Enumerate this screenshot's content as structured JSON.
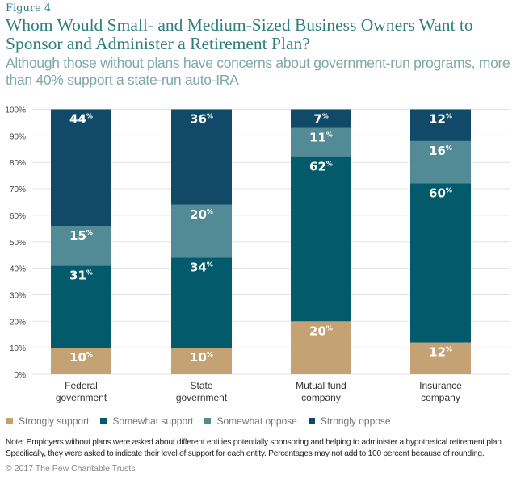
{
  "figure_label": "Figure 4",
  "title": "Whom Would Small- and Medium-Sized Business Owners Want to Sponsor and Administer a Retirement Plan?",
  "subtitle": "Although those without plans have concerns about government-run programs, more than 40% support a state-run auto-IRA",
  "note": "Note: Employers without plans were asked about different entities potentially sponsoring and helping to administer a hypothetical retirement plan. Specifically, they were asked to indicate their level of support for each entity. Percentages may not add to 100 percent because of rounding.",
  "copyright": "© 2017 The Pew Charitable Trusts",
  "chart_data": {
    "type": "bar",
    "stacked": true,
    "categories": [
      "Federal\ngovernment",
      "State\ngovernment",
      "Mutual fund\ncompany",
      "Insurance\ncompany"
    ],
    "series": [
      {
        "name": "Strongly support",
        "color": "#c4a274",
        "values": [
          10,
          10,
          20,
          12
        ]
      },
      {
        "name": "Somewhat support",
        "color": "#035a6a",
        "values": [
          31,
          34,
          62,
          60
        ]
      },
      {
        "name": "Somewhat oppose",
        "color": "#528a96",
        "values": [
          15,
          20,
          11,
          16
        ]
      },
      {
        "name": "Strongly oppose",
        "color": "#104a68",
        "values": [
          44,
          36,
          7,
          12
        ]
      }
    ],
    "ylim": [
      0,
      100
    ],
    "yticks": [
      "0%",
      "10%",
      "20%",
      "30%",
      "40%",
      "50%",
      "60%",
      "70%",
      "80%",
      "90%",
      "100%"
    ],
    "grid": true,
    "legend": "bottom"
  }
}
